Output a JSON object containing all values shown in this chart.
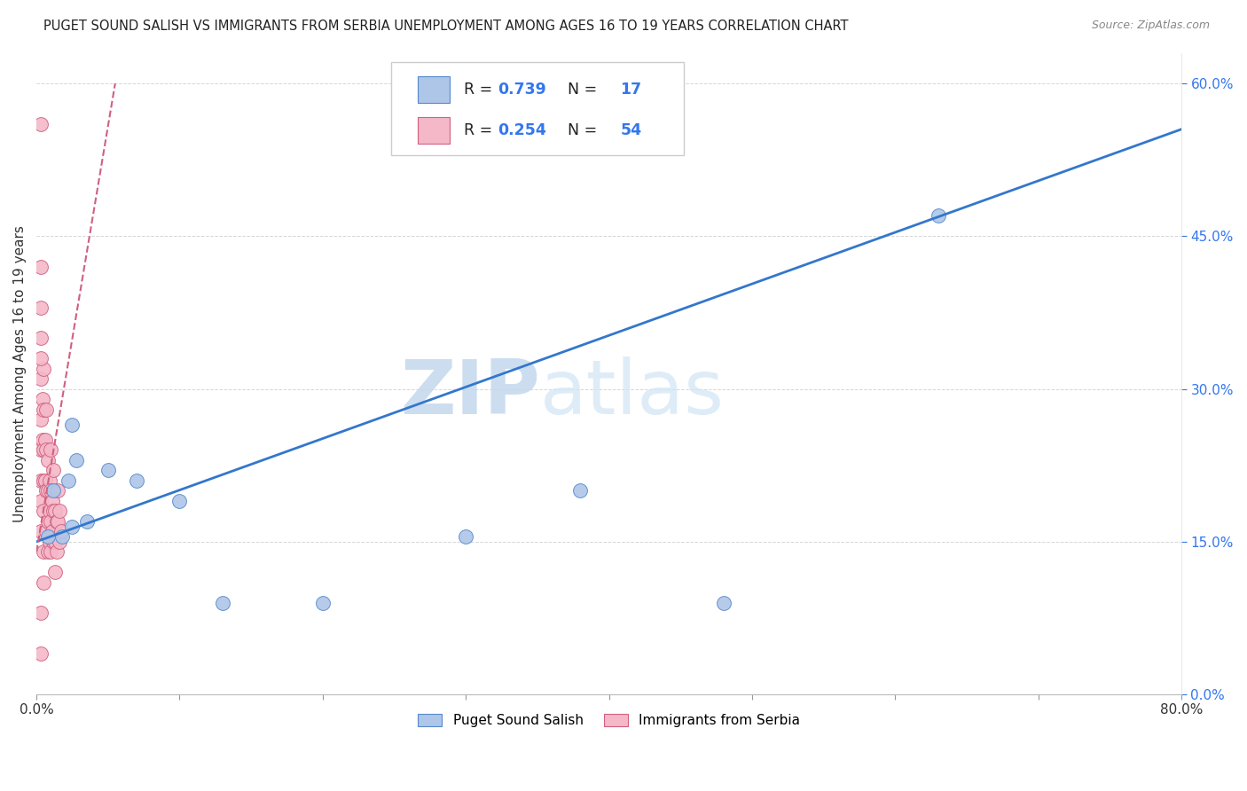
{
  "title": "PUGET SOUND SALISH VS IMMIGRANTS FROM SERBIA UNEMPLOYMENT AMONG AGES 16 TO 19 YEARS CORRELATION CHART",
  "source": "Source: ZipAtlas.com",
  "ylabel": "Unemployment Among Ages 16 to 19 years",
  "xlim": [
    0.0,
    0.8
  ],
  "ylim": [
    0.0,
    0.63
  ],
  "xticks": [
    0.0,
    0.1,
    0.2,
    0.3,
    0.4,
    0.5,
    0.6,
    0.7,
    0.8
  ],
  "ytick_labels_right": [
    "0.0%",
    "15.0%",
    "30.0%",
    "45.0%",
    "60.0%"
  ],
  "watermark_zip": "ZIP",
  "watermark_atlas": "atlas",
  "group1_name": "Puget Sound Salish",
  "group2_name": "Immigrants from Serbia",
  "group1_color": "#aec6e8",
  "group2_color": "#f4b8c8",
  "group1_edge_color": "#5588cc",
  "group2_edge_color": "#d06080",
  "trend1_color": "#3377cc",
  "trend2_color": "#d06080",
  "grid_color": "#cccccc",
  "title_color": "#222222",
  "right_axis_color": "#3377ee",
  "blue_points_x": [
    0.008,
    0.012,
    0.018,
    0.022,
    0.025,
    0.028,
    0.035,
    0.05,
    0.07,
    0.1,
    0.13,
    0.2,
    0.3,
    0.38,
    0.48,
    0.63,
    0.025
  ],
  "blue_points_y": [
    0.155,
    0.2,
    0.155,
    0.21,
    0.165,
    0.23,
    0.17,
    0.22,
    0.21,
    0.19,
    0.09,
    0.09,
    0.155,
    0.2,
    0.09,
    0.47,
    0.265
  ],
  "blue_trend_x": [
    0.0,
    0.8
  ],
  "blue_trend_y": [
    0.15,
    0.555
  ],
  "pink_trend_x": [
    0.0,
    0.055
  ],
  "pink_trend_y": [
    0.14,
    0.6
  ],
  "pink_points_x": [
    0.003,
    0.003,
    0.003,
    0.003,
    0.003,
    0.003,
    0.003,
    0.003,
    0.003,
    0.004,
    0.004,
    0.005,
    0.005,
    0.005,
    0.005,
    0.005,
    0.005,
    0.005,
    0.006,
    0.006,
    0.007,
    0.007,
    0.007,
    0.007,
    0.008,
    0.008,
    0.008,
    0.008,
    0.009,
    0.009,
    0.009,
    0.01,
    0.01,
    0.01,
    0.01,
    0.011,
    0.011,
    0.012,
    0.012,
    0.012,
    0.013,
    0.013,
    0.013,
    0.014,
    0.014,
    0.015,
    0.015,
    0.016,
    0.016,
    0.017,
    0.003,
    0.003,
    0.003,
    0.003
  ],
  "pink_points_y": [
    0.56,
    0.38,
    0.35,
    0.31,
    0.27,
    0.24,
    0.21,
    0.19,
    0.16,
    0.29,
    0.25,
    0.32,
    0.28,
    0.24,
    0.21,
    0.18,
    0.14,
    0.11,
    0.25,
    0.21,
    0.28,
    0.24,
    0.2,
    0.16,
    0.23,
    0.2,
    0.17,
    0.14,
    0.21,
    0.18,
    0.15,
    0.24,
    0.2,
    0.17,
    0.14,
    0.19,
    0.16,
    0.22,
    0.18,
    0.15,
    0.18,
    0.15,
    0.12,
    0.17,
    0.14,
    0.2,
    0.17,
    0.18,
    0.15,
    0.16,
    0.42,
    0.33,
    0.08,
    0.04
  ]
}
